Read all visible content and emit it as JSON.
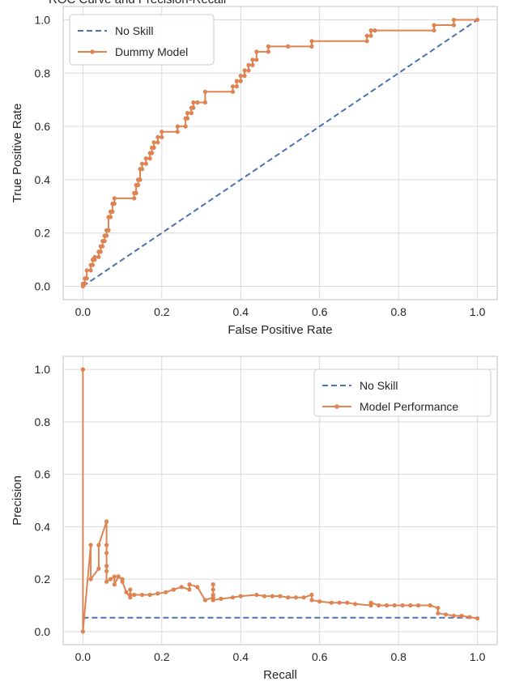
{
  "page_title_fragment": "ROC Curve and Precision-Recall",
  "chart_data": [
    {
      "type": "line",
      "xlabel": "False Positive Rate",
      "ylabel": "True Positive Rate",
      "xlim": [
        -0.05,
        1.05
      ],
      "ylim": [
        -0.05,
        1.05
      ],
      "xticks": [
        "0.0",
        "0.2",
        "0.4",
        "0.6",
        "0.8",
        "1.0"
      ],
      "yticks": [
        "0.0",
        "0.2",
        "0.4",
        "0.6",
        "0.8",
        "1.0"
      ],
      "grid": true,
      "legend_position": "upper-left",
      "series": [
        {
          "name": "No Skill",
          "style": "dashed",
          "color": "#4c72b0",
          "x": [
            0,
            1
          ],
          "y": [
            0,
            1
          ]
        },
        {
          "name": "Dummy Model",
          "style": "solid-dot",
          "color": "#dd8452",
          "x": [
            0.0,
            0.0,
            0.005,
            0.005,
            0.01,
            0.01,
            0.02,
            0.02,
            0.025,
            0.025,
            0.03,
            0.03,
            0.04,
            0.04,
            0.045,
            0.045,
            0.05,
            0.05,
            0.055,
            0.055,
            0.06,
            0.06,
            0.065,
            0.065,
            0.07,
            0.07,
            0.075,
            0.075,
            0.08,
            0.08,
            0.13,
            0.13,
            0.135,
            0.135,
            0.14,
            0.14,
            0.145,
            0.145,
            0.15,
            0.15,
            0.16,
            0.16,
            0.17,
            0.17,
            0.175,
            0.175,
            0.18,
            0.18,
            0.19,
            0.19,
            0.2,
            0.2,
            0.24,
            0.24,
            0.26,
            0.26,
            0.265,
            0.265,
            0.275,
            0.275,
            0.28,
            0.28,
            0.29,
            0.29,
            0.31,
            0.31,
            0.38,
            0.38,
            0.39,
            0.39,
            0.4,
            0.4,
            0.41,
            0.41,
            0.42,
            0.42,
            0.43,
            0.43,
            0.44,
            0.44,
            0.47,
            0.47,
            0.52,
            0.52,
            0.58,
            0.58,
            0.72,
            0.72,
            0.73,
            0.73,
            0.74,
            0.74,
            0.89,
            0.89,
            0.94,
            0.94,
            1.0
          ],
          "y": [
            0.0,
            0.01,
            0.01,
            0.03,
            0.03,
            0.06,
            0.06,
            0.08,
            0.08,
            0.1,
            0.1,
            0.11,
            0.11,
            0.13,
            0.13,
            0.15,
            0.15,
            0.17,
            0.17,
            0.19,
            0.19,
            0.21,
            0.21,
            0.26,
            0.26,
            0.28,
            0.28,
            0.31,
            0.31,
            0.33,
            0.33,
            0.35,
            0.35,
            0.38,
            0.38,
            0.4,
            0.4,
            0.44,
            0.44,
            0.46,
            0.46,
            0.48,
            0.48,
            0.5,
            0.5,
            0.52,
            0.52,
            0.54,
            0.54,
            0.56,
            0.56,
            0.58,
            0.58,
            0.6,
            0.6,
            0.63,
            0.63,
            0.65,
            0.65,
            0.67,
            0.67,
            0.69,
            0.69,
            0.69,
            0.69,
            0.73,
            0.73,
            0.75,
            0.75,
            0.77,
            0.77,
            0.79,
            0.79,
            0.81,
            0.81,
            0.83,
            0.83,
            0.85,
            0.85,
            0.88,
            0.88,
            0.9,
            0.9,
            0.9,
            0.9,
            0.92,
            0.92,
            0.94,
            0.94,
            0.96,
            0.96,
            0.96,
            0.96,
            0.98,
            0.98,
            1.0,
            1.0
          ]
        }
      ]
    },
    {
      "type": "line",
      "xlabel": "Recall",
      "ylabel": "Precision",
      "xlim": [
        -0.05,
        1.05
      ],
      "ylim": [
        -0.05,
        1.05
      ],
      "xticks": [
        "0.0",
        "0.2",
        "0.4",
        "0.6",
        "0.8",
        "1.0"
      ],
      "yticks": [
        "0.0",
        "0.2",
        "0.4",
        "0.6",
        "0.8",
        "1.0"
      ],
      "grid": true,
      "legend_position": "upper-right",
      "series": [
        {
          "name": "No Skill",
          "style": "dashed",
          "color": "#4c72b0",
          "x": [
            0,
            1
          ],
          "y": [
            0.053,
            0.053
          ]
        },
        {
          "name": "Model Performance",
          "style": "solid-dot",
          "color": "#dd8452",
          "x": [
            1.0,
            0.98,
            0.96,
            0.94,
            0.92,
            0.9,
            0.9,
            0.88,
            0.85,
            0.83,
            0.81,
            0.79,
            0.77,
            0.75,
            0.73,
            0.73,
            0.69,
            0.67,
            0.65,
            0.63,
            0.6,
            0.58,
            0.58,
            0.56,
            0.54,
            0.52,
            0.5,
            0.48,
            0.46,
            0.44,
            0.4,
            0.38,
            0.35,
            0.33,
            0.33,
            0.33,
            0.33,
            0.33,
            0.31,
            0.29,
            0.27,
            0.27,
            0.25,
            0.23,
            0.21,
            0.19,
            0.17,
            0.15,
            0.13,
            0.12,
            0.12,
            0.12,
            0.11,
            0.1,
            0.1,
            0.09,
            0.08,
            0.08,
            0.07,
            0.06,
            0.06,
            0.06,
            0.06,
            0.06,
            0.06,
            0.04,
            0.04,
            0.02,
            0.02,
            0.0,
            0.0,
            0.0
          ],
          "y": [
            0.05,
            0.055,
            0.06,
            0.06,
            0.065,
            0.07,
            0.09,
            0.1,
            0.1,
            0.1,
            0.1,
            0.1,
            0.1,
            0.1,
            0.11,
            0.1,
            0.105,
            0.11,
            0.11,
            0.11,
            0.115,
            0.12,
            0.14,
            0.13,
            0.13,
            0.13,
            0.135,
            0.135,
            0.135,
            0.14,
            0.135,
            0.13,
            0.125,
            0.12,
            0.14,
            0.16,
            0.18,
            0.13,
            0.12,
            0.17,
            0.18,
            0.16,
            0.17,
            0.16,
            0.15,
            0.145,
            0.14,
            0.14,
            0.14,
            0.14,
            0.16,
            0.13,
            0.15,
            0.19,
            0.2,
            0.21,
            0.18,
            0.21,
            0.2,
            0.19,
            0.23,
            0.25,
            0.3,
            0.33,
            0.42,
            0.33,
            0.24,
            0.2,
            0.33,
            0.0,
            1.0,
            1.0
          ]
        }
      ]
    }
  ]
}
